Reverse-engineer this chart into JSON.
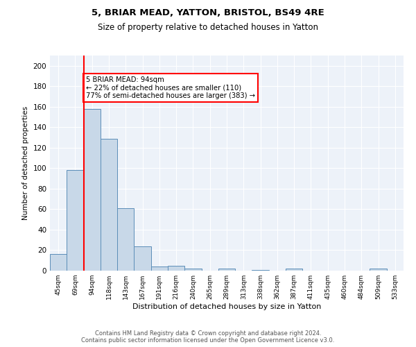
{
  "title1": "5, BRIAR MEAD, YATTON, BRISTOL, BS49 4RE",
  "title2": "Size of property relative to detached houses in Yatton",
  "xlabel": "Distribution of detached houses by size in Yatton",
  "ylabel": "Number of detached properties",
  "categories": [
    "45sqm",
    "69sqm",
    "94sqm",
    "118sqm",
    "143sqm",
    "167sqm",
    "191sqm",
    "216sqm",
    "240sqm",
    "265sqm",
    "289sqm",
    "313sqm",
    "338sqm",
    "362sqm",
    "387sqm",
    "411sqm",
    "435sqm",
    "460sqm",
    "484sqm",
    "509sqm",
    "533sqm"
  ],
  "values": [
    16,
    98,
    158,
    129,
    61,
    24,
    4,
    5,
    2,
    0,
    2,
    0,
    1,
    0,
    2,
    0,
    0,
    0,
    0,
    2,
    0
  ],
  "bar_color": "#c8d8e8",
  "bar_edge_color": "#5b8db8",
  "red_line_index": 2,
  "annotation_text": "5 BRIAR MEAD: 94sqm\n← 22% of detached houses are smaller (110)\n77% of semi-detached houses are larger (383) →",
  "annotation_box_color": "white",
  "annotation_box_edge_color": "red",
  "ylim": [
    0,
    210
  ],
  "yticks": [
    0,
    20,
    40,
    60,
    80,
    100,
    120,
    140,
    160,
    180,
    200
  ],
  "background_color": "#edf2f9",
  "grid_color": "#ffffff",
  "footer1": "Contains HM Land Registry data © Crown copyright and database right 2024.",
  "footer2": "Contains public sector information licensed under the Open Government Licence v3.0."
}
